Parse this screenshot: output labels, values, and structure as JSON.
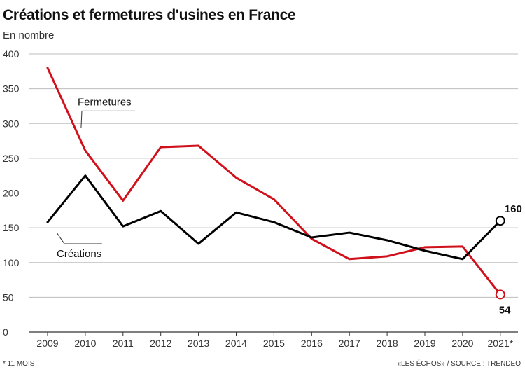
{
  "header": {
    "title": "Créations et fermetures d'usines en France",
    "subtitle": "En nombre"
  },
  "footer": {
    "note": "* 11 MOIS",
    "source": "«LES ÉCHOS» / SOURCE : TRENDEO"
  },
  "chart_data": {
    "type": "line",
    "title": "Créations et fermetures d'usines en France",
    "subtitle": "En nombre",
    "xlabel": "",
    "ylabel": "",
    "categories": [
      "2009",
      "2010",
      "2011",
      "2012",
      "2013",
      "2014",
      "2015",
      "2016",
      "2017",
      "2018",
      "2019",
      "2020",
      "2021*"
    ],
    "ylim": [
      0,
      400
    ],
    "yticks": [
      0,
      50,
      100,
      150,
      200,
      250,
      300,
      350,
      400
    ],
    "grid": true,
    "series": [
      {
        "name": "Fermetures",
        "color": "#d0111b",
        "values": [
          380,
          261,
          189,
          266,
          268,
          222,
          191,
          134,
          105,
          109,
          122,
          123,
          54
        ]
      },
      {
        "name": "Créations",
        "color": "#000000",
        "values": [
          158,
          225,
          152,
          174,
          127,
          172,
          158,
          136,
          143,
          132,
          117,
          105,
          160
        ]
      }
    ],
    "end_labels": [
      "160",
      "54"
    ]
  }
}
